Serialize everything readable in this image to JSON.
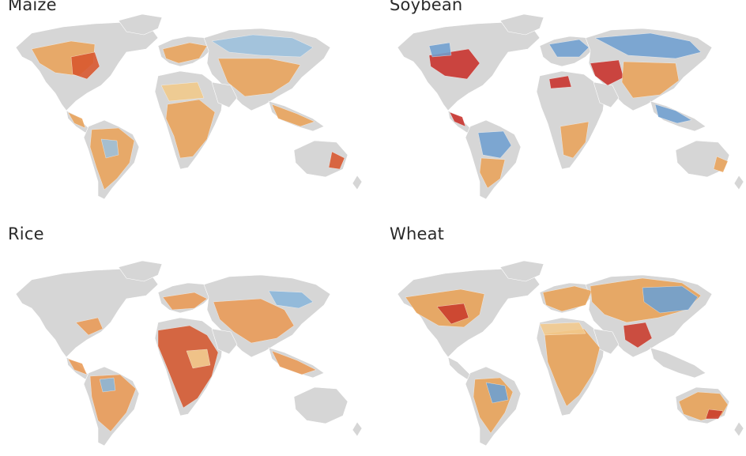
{
  "panels": [
    {
      "title": "Maize",
      "colors": {
        "warm": "#e9a35a",
        "hot": "#d8552c",
        "cool": "#9cc0dd",
        "mild": "#f1c98a"
      }
    },
    {
      "title": "Soybean",
      "colors": {
        "warm": "#e9a35a",
        "hot": "#c8302a",
        "cool": "#6f9fd0",
        "mild": "#f1c98a"
      }
    },
    {
      "title": "Rice",
      "colors": {
        "warm": "#e99a55",
        "hot": "#d4562e",
        "cool": "#8ab6db",
        "mild": "#f3cf92"
      }
    },
    {
      "title": "Wheat",
      "colors": {
        "warm": "#e8a257",
        "hot": "#c93a2b",
        "cool": "#6b9fd4",
        "mild": "#f2c98d"
      }
    }
  ],
  "base_land_color": "#d6d6d6"
}
